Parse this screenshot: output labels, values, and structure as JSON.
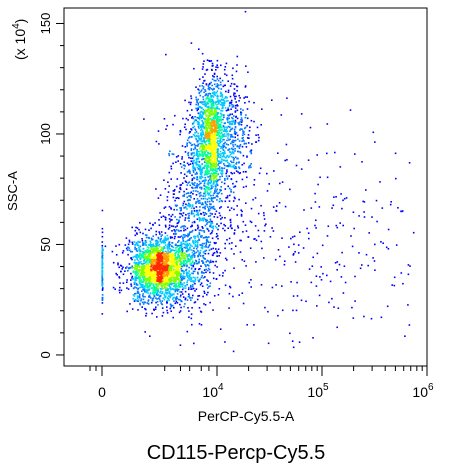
{
  "chart_data": {
    "type": "scatter",
    "subtype": "flow-cytometry-density-dot-plot",
    "title": "CD115-Percp-Cy5.5",
    "xlabel": "PerCP-Cy5.5-A",
    "ylabel": "SSC-A",
    "y_multiplier_label": "(x 10",
    "y_multiplier_exponent": "4",
    "x_scale": "biexponential",
    "y_scale": "linear",
    "ylim": [
      -5,
      157
    ],
    "x_ticks": [
      {
        "value": 0,
        "base": "0",
        "exp": ""
      },
      {
        "value": 10000,
        "base": "10",
        "exp": "4"
      },
      {
        "value": 100000,
        "base": "10",
        "exp": "5"
      },
      {
        "value": 1000000,
        "base": "10",
        "exp": "6"
      }
    ],
    "y_ticks": [
      0,
      50,
      100,
      150
    ],
    "grid": false,
    "legend": "none",
    "density_colors": [
      "#0000ff",
      "#0077ff",
      "#00c8ff",
      "#00ff9c",
      "#7fff00",
      "#ffff00",
      "#ffa000",
      "#ff2a00"
    ],
    "populations": [
      {
        "name": "",
        "x_center_log10": 2.9,
        "x_spread_log10": 0.35,
        "y_center": 39,
        "y_spread": 7.5,
        "relative_count": 0.45
      },
      {
        "name": "",
        "x_center_log10": 3.92,
        "x_spread_log10": 0.18,
        "y_center": 100,
        "y_spread": 13,
        "relative_count": 0.33
      },
      {
        "name": "",
        "x_center_log10": 3.6,
        "x_spread_log10": 0.3,
        "y_center": 65,
        "y_spread": 20,
        "relative_count": 0.17
      },
      {
        "name": "",
        "x_center_log10": 4.9,
        "x_spread_log10": 0.55,
        "y_center": 55,
        "y_spread": 25,
        "relative_count": 0.05
      }
    ]
  }
}
